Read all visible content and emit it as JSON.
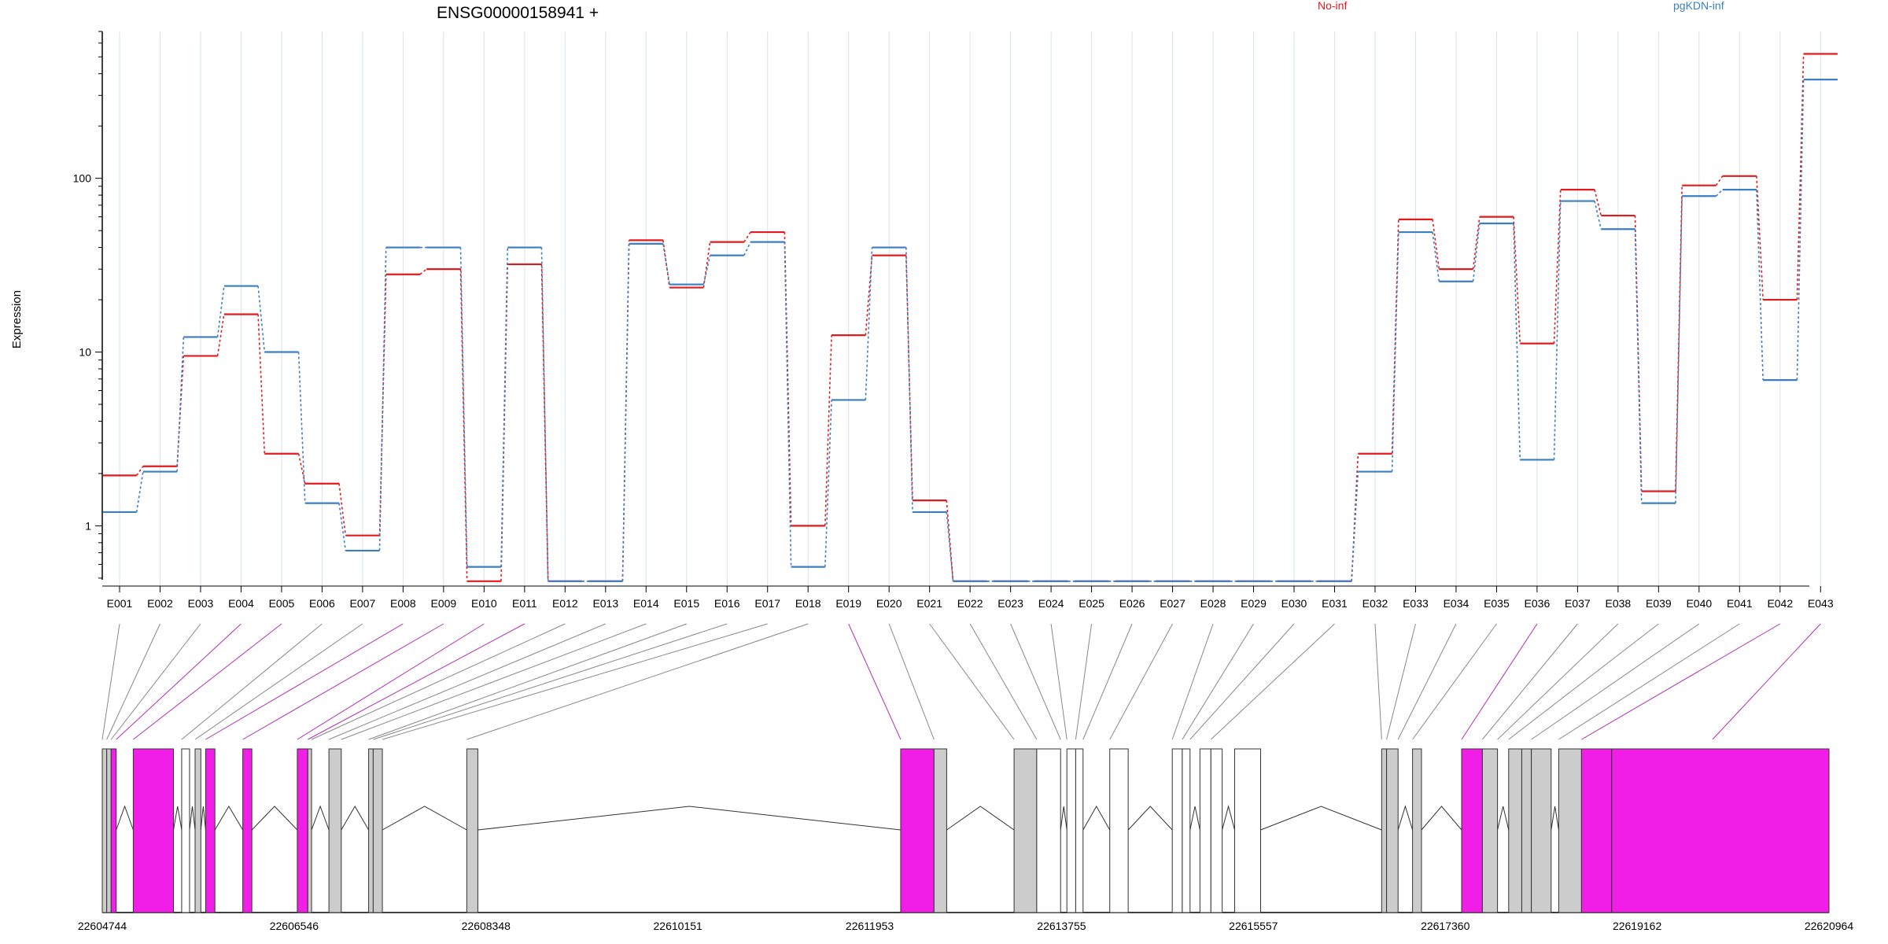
{
  "title": "ENSG00000158941 +",
  "ylabel": "Expression",
  "legend": [
    {
      "name": "No-inf",
      "color": "#e31a1c"
    },
    {
      "name": "pgKDN-inf",
      "color": "#3b7ec2"
    }
  ],
  "colors": {
    "noinf": "#e31a1c",
    "pgkdn": "#3b7ec2",
    "grid": "#d9e1f0",
    "exon_sig": "#f01ee6",
    "exon_grey": "#cccccc",
    "exon_white": "#ffffff",
    "exon_stroke": "#333333",
    "link_grey": "#888888",
    "link_sig": "#b030b0"
  },
  "chart_data": {
    "type": "line",
    "scale": "log",
    "yticks": [
      1,
      10,
      100
    ],
    "ylim": [
      0.45,
      700
    ],
    "categories": [
      "E001",
      "E002",
      "E003",
      "E004",
      "E005",
      "E006",
      "E007",
      "E008",
      "E009",
      "E010",
      "E011",
      "E012",
      "E013",
      "E014",
      "E015",
      "E016",
      "E017",
      "E018",
      "E019",
      "E020",
      "E021",
      "E022",
      "E023",
      "E024",
      "E025",
      "E026",
      "E027",
      "E028",
      "E029",
      "E030",
      "E031",
      "E032",
      "E033",
      "E034",
      "E035",
      "E036",
      "E037",
      "E038",
      "E039",
      "E040",
      "E041",
      "E042",
      "E043"
    ],
    "series": [
      {
        "name": "No-inf",
        "values": [
          1.95,
          2.2,
          9.5,
          16.5,
          2.6,
          1.75,
          0.88,
          28,
          30,
          0.48,
          32,
          0.48,
          0.48,
          44,
          23.5,
          43,
          49,
          1,
          12.5,
          36,
          1.4,
          0.48,
          0.48,
          0.48,
          0.48,
          0.48,
          0.48,
          0.48,
          0.48,
          0.48,
          0.48,
          2.6,
          58,
          30,
          60,
          11.2,
          86,
          61,
          1.58,
          91,
          103,
          20,
          520
        ]
      },
      {
        "name": "pgKDN-inf",
        "values": [
          1.2,
          2.05,
          12.2,
          24,
          10,
          1.35,
          0.72,
          40,
          40,
          0.58,
          40,
          0.48,
          0.48,
          42,
          24.5,
          36,
          43,
          0.58,
          5.3,
          40,
          1.2,
          0.48,
          0.48,
          0.48,
          0.48,
          0.48,
          0.48,
          0.48,
          0.48,
          0.48,
          0.48,
          2.05,
          49,
          25.5,
          55,
          2.4,
          74,
          51,
          1.35,
          79,
          86,
          6.9,
          370
        ]
      }
    ]
  },
  "gene_model": {
    "coordinates": [
      "22604744",
      "22606546",
      "22608348",
      "22610151",
      "22611953",
      "22613755",
      "22615557",
      "22617360",
      "22619162",
      "22620964"
    ],
    "genomic_range": [
      22604744,
      22620964
    ],
    "exons": [
      {
        "id": "E001",
        "start": 22604744,
        "end": 22604786,
        "type": "grey"
      },
      {
        "id": "E002",
        "start": 22604786,
        "end": 22604827,
        "type": "grey"
      },
      {
        "id": "E003",
        "start": 22604827,
        "end": 22604875,
        "type": "sig"
      },
      {
        "id": "E004",
        "start": 22605035,
        "end": 22605413,
        "type": "sig"
      },
      {
        "id": "E005",
        "start": 22605490,
        "end": 22605564,
        "type": "white"
      },
      {
        "id": "E006",
        "start": 22605616,
        "end": 22605670,
        "type": "grey"
      },
      {
        "id": "E007",
        "start": 22605715,
        "end": 22605802,
        "type": "sig"
      },
      {
        "id": "E008",
        "start": 22606064,
        "end": 22606149,
        "type": "sig"
      },
      {
        "id": "E009",
        "start": 22606576,
        "end": 22606675,
        "type": "sig"
      },
      {
        "id": "E010",
        "start": 22606675,
        "end": 22606710,
        "type": "grey"
      },
      {
        "id": "E011",
        "start": 22606873,
        "end": 22606989,
        "type": "grey"
      },
      {
        "id": "E012",
        "start": 22607246,
        "end": 22607289,
        "type": "grey"
      },
      {
        "id": "E013",
        "start": 22607289,
        "end": 22607375,
        "type": "grey"
      },
      {
        "id": "E014",
        "start": 22608168,
        "end": 22608272,
        "type": "grey"
      },
      {
        "id": "E015",
        "start": 22612244,
        "end": 22612557,
        "type": "sig"
      },
      {
        "id": "E016",
        "start": 22612557,
        "end": 22612676,
        "type": "grey"
      },
      {
        "id": "E017",
        "start": 22613309,
        "end": 22613522,
        "type": "grey"
      },
      {
        "id": "E018",
        "start": 22613522,
        "end": 22613746,
        "type": "white"
      },
      {
        "id": "E019",
        "start": 22613805,
        "end": 22613888,
        "type": "white"
      },
      {
        "id": "E020",
        "start": 22613888,
        "end": 22613957,
        "type": "white"
      },
      {
        "id": "E021",
        "start": 22614208,
        "end": 22614381,
        "type": "white"
      },
      {
        "id": "E022",
        "start": 22614795,
        "end": 22614889,
        "type": "white"
      },
      {
        "id": "E023",
        "start": 22614889,
        "end": 22614962,
        "type": "white"
      },
      {
        "id": "E024",
        "start": 22615055,
        "end": 22615158,
        "type": "white"
      },
      {
        "id": "E025",
        "start": 22615158,
        "end": 22615264,
        "type": "white"
      },
      {
        "id": "E026",
        "start": 22615381,
        "end": 22615625,
        "type": "white"
      },
      {
        "id": "E027",
        "start": 22616762,
        "end": 22616808,
        "type": "grey"
      },
      {
        "id": "E028",
        "start": 22616808,
        "end": 22616916,
        "type": "grey"
      },
      {
        "id": "E029",
        "start": 22617052,
        "end": 22617136,
        "type": "grey"
      },
      {
        "id": "E030",
        "start": 22617513,
        "end": 22617708,
        "type": "sig"
      },
      {
        "id": "E031",
        "start": 22617708,
        "end": 22617850,
        "type": "grey"
      },
      {
        "id": "E032",
        "start": 22617955,
        "end": 22618078,
        "type": "grey"
      },
      {
        "id": "E033",
        "start": 22618078,
        "end": 22618168,
        "type": "grey"
      },
      {
        "id": "E034",
        "start": 22618168,
        "end": 22618354,
        "type": "grey"
      },
      {
        "id": "E035",
        "start": 22618425,
        "end": 22618639,
        "type": "grey"
      },
      {
        "id": "E036",
        "start": 22618639,
        "end": 22618923,
        "type": "sig"
      },
      {
        "id": "E037",
        "start": 22618923,
        "end": 22620964,
        "type": "sig"
      }
    ],
    "links": [
      [
        "E001",
        22604744,
        "grey"
      ],
      [
        "E002",
        22604786,
        "grey"
      ],
      [
        "E003",
        22604827,
        "grey"
      ],
      [
        "E004",
        22604875,
        "sig"
      ],
      [
        "E005",
        22605035,
        "sig"
      ],
      [
        "E006",
        22605490,
        "grey"
      ],
      [
        "E007",
        22605616,
        "grey"
      ],
      [
        "E008",
        22605715,
        "sig"
      ],
      [
        "E009",
        22606064,
        "sig"
      ],
      [
        "E010",
        22606576,
        "sig"
      ],
      [
        "E011",
        22606675,
        "sig"
      ],
      [
        "E012",
        22606710,
        "grey"
      ],
      [
        "E013",
        22606873,
        "grey"
      ],
      [
        "E014",
        22606989,
        "grey"
      ],
      [
        "E015",
        22607246,
        "grey"
      ],
      [
        "E016",
        22607289,
        "grey"
      ],
      [
        "E017",
        22607375,
        "grey"
      ],
      [
        "E018",
        22608168,
        "grey"
      ],
      [
        "E019",
        22612244,
        "sig"
      ],
      [
        "E020",
        22612557,
        "grey"
      ],
      [
        "E021",
        22613309,
        "grey"
      ],
      [
        "E022",
        22613522,
        "grey"
      ],
      [
        "E023",
        22613746,
        "grey"
      ],
      [
        "E024",
        22613805,
        "grey"
      ],
      [
        "E025",
        22613888,
        "grey"
      ],
      [
        "E026",
        22613957,
        "grey"
      ],
      [
        "E027",
        22614208,
        "grey"
      ],
      [
        "E028",
        22614795,
        "grey"
      ],
      [
        "E029",
        22614889,
        "grey"
      ],
      [
        "E030",
        22614962,
        "grey"
      ],
      [
        "E031",
        22615158,
        "grey"
      ],
      [
        "E032",
        22616762,
        "grey"
      ],
      [
        "E033",
        22616808,
        "grey"
      ],
      [
        "E034",
        22616916,
        "grey"
      ],
      [
        "E035",
        22617052,
        "grey"
      ],
      [
        "E036",
        22617513,
        "sig"
      ],
      [
        "E037",
        22617708,
        "grey"
      ],
      [
        "E038",
        22617850,
        "grey"
      ],
      [
        "E039",
        22617955,
        "grey"
      ],
      [
        "E040",
        22618168,
        "grey"
      ],
      [
        "E041",
        22618425,
        "grey"
      ],
      [
        "E042",
        22618639,
        "sig"
      ],
      [
        "E043",
        22619870,
        "sig"
      ]
    ]
  }
}
